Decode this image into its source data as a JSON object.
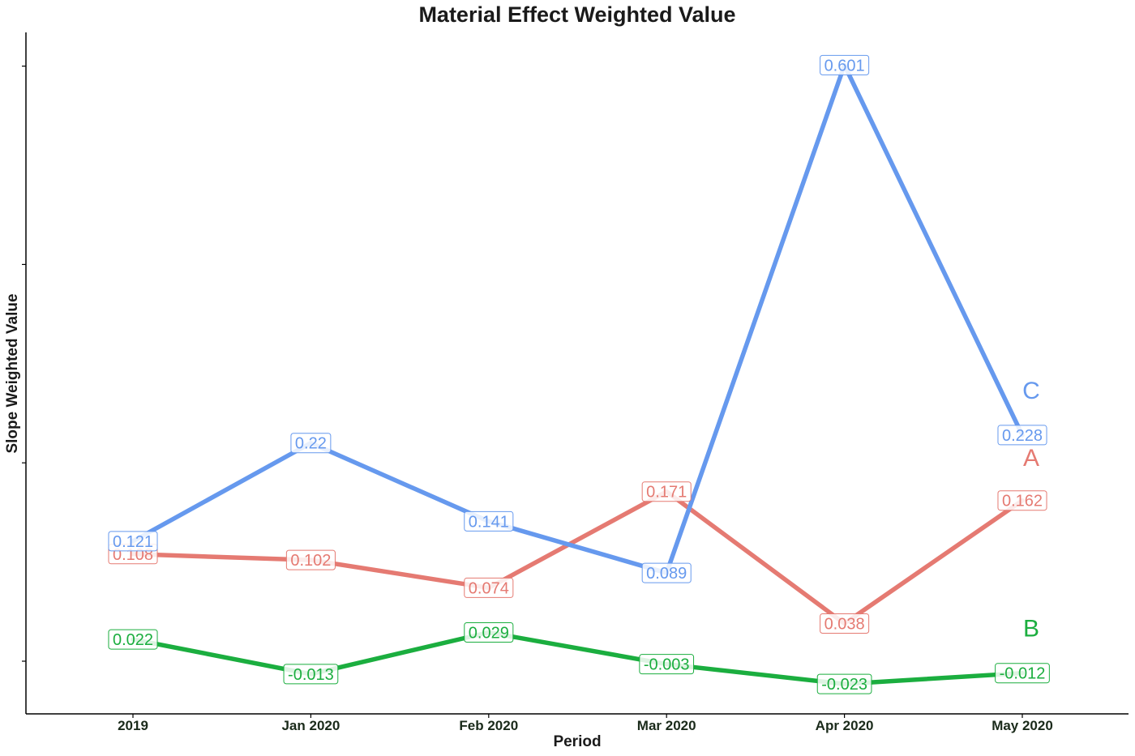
{
  "chart_data": {
    "type": "line",
    "title": "Material Effect Weighted Value",
    "xlabel": "Period",
    "ylabel": "Slope Weighted Value",
    "categories": [
      "2019",
      "Jan 2020",
      "Feb 2020",
      "Mar 2020",
      "Apr 2020",
      "May 2020"
    ],
    "ylim": [
      -0.05,
      0.62
    ],
    "y_tick_labels_shown": false,
    "grid": false,
    "legend": "direct labels at right end of lines",
    "series": [
      {
        "name": "A",
        "color": "#E57A72",
        "values": [
          0.108,
          0.102,
          0.074,
          0.171,
          0.038,
          0.162
        ],
        "labels": [
          "0.108",
          "0.102",
          "0.074",
          "0.171",
          "0.038",
          "0.162"
        ]
      },
      {
        "name": "B",
        "color": "#1BAE3F",
        "values": [
          0.022,
          -0.013,
          0.029,
          -0.003,
          -0.023,
          -0.012
        ],
        "labels": [
          "0.022",
          "-0.013",
          "0.029",
          "-0.003",
          "-0.023",
          "-0.012"
        ]
      },
      {
        "name": "C",
        "color": "#6699EE",
        "values": [
          0.121,
          0.22,
          0.141,
          0.089,
          0.601,
          0.228
        ],
        "labels": [
          "0.121",
          "0.22",
          "0.141",
          "0.089",
          "0.601",
          "0.228"
        ]
      }
    ]
  }
}
